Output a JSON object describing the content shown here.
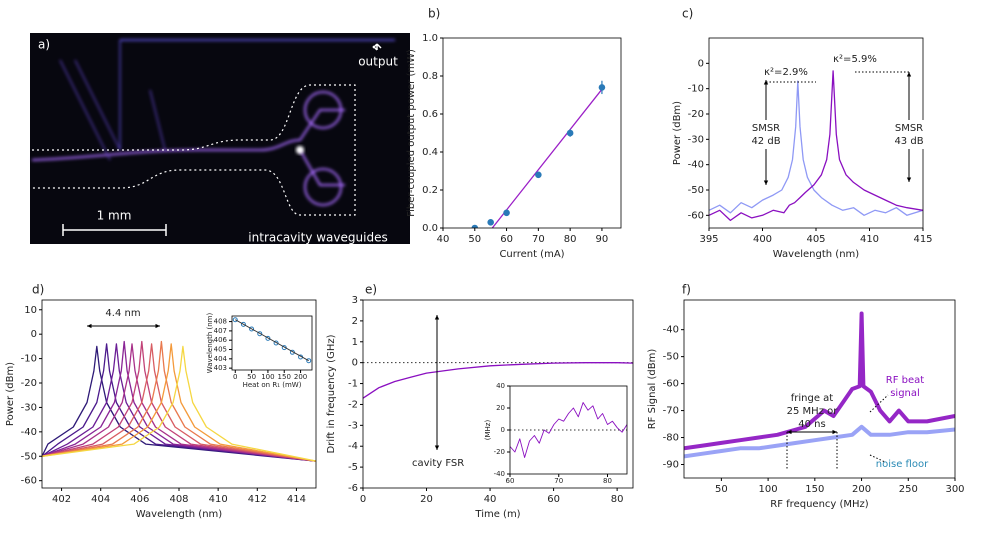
{
  "panel_a": {
    "label": "a)",
    "output": "output",
    "scale": "1 mm",
    "caption": "intracavity waveguides"
  },
  "chart_data": [
    {
      "label": "b)",
      "type": "scatter",
      "xlabel": "Current (mA)",
      "ylabel": "Fiber-coupled output power (mW)",
      "xlim": [
        40,
        96
      ],
      "xticks": [
        40,
        50,
        60,
        70,
        80,
        90
      ],
      "ylim": [
        0,
        1.0
      ],
      "yticks": [
        {
          "value": 0,
          "label": "0.0"
        },
        0.2,
        0.4,
        0.6,
        0.8,
        {
          "value": 1,
          "label": "1.0"
        }
      ],
      "series": [
        {
          "color": "#9b1fc7",
          "style": "line",
          "x": [
            55.5,
            90
          ],
          "values": [
            0,
            0.73
          ]
        },
        {
          "color": "#2a7ab8",
          "style": "points",
          "x": [
            50,
            55,
            60,
            70,
            80,
            90
          ],
          "values": [
            0.0,
            0.03,
            0.08,
            0.28,
            0.5,
            0.74
          ],
          "errors": [
            0.005,
            0.005,
            0.01,
            0.015,
            0.02,
            0.035
          ]
        }
      ]
    },
    {
      "label": "c)",
      "type": "line",
      "xlabel": "Wavelength (nm)",
      "ylabel": "Power (dBm)",
      "xlim": [
        395,
        415
      ],
      "xticks": [
        395,
        400,
        405,
        410,
        415
      ],
      "ylim": [
        -65,
        10
      ],
      "yticks": [
        -60,
        -50,
        -40,
        -30,
        -20,
        -10,
        0
      ],
      "annotations": [
        "κ²=2.9%",
        "κ²=5.9%",
        [
          "SMSR",
          "42 dB"
        ],
        [
          "SMSR",
          "43 dB"
        ]
      ],
      "series": [
        {
          "color": "#8f99f5",
          "style": "line",
          "x": [
            395,
            396,
            397,
            398,
            399,
            400,
            401,
            401.8,
            402.4,
            402.8,
            403.1,
            403.3,
            403.5,
            403.8,
            404.2,
            404.8,
            405.5,
            406.5,
            407.5,
            408.5,
            409.5,
            410.5,
            411.5,
            412.5,
            413.5,
            415
          ],
          "values": [
            -58,
            -56,
            -59,
            -55,
            -57,
            -54,
            -52,
            -50,
            -45,
            -38,
            -25,
            -7,
            -25,
            -38,
            -45,
            -50,
            -53,
            -56,
            -58,
            -57,
            -60,
            -58,
            -59,
            -57,
            -60,
            -58
          ]
        },
        {
          "color": "#8a0fc0",
          "style": "line",
          "x": [
            395,
            396,
            397,
            398,
            399,
            400,
            401,
            402,
            402.5,
            403,
            403.5,
            404,
            404.8,
            405.5,
            406,
            406.3,
            406.6,
            406.9,
            407.2,
            407.8,
            408.5,
            409.5,
            410.5,
            411.5,
            412.5,
            413.5,
            415
          ],
          "values": [
            -60,
            -58,
            -62,
            -59,
            -61,
            -60,
            -58,
            -59,
            -56,
            -55,
            -53,
            -51,
            -48,
            -44,
            -38,
            -28,
            -3,
            -28,
            -38,
            -44,
            -47,
            -50,
            -52,
            -54,
            -56,
            -57,
            -58
          ]
        }
      ]
    },
    {
      "label": "d)",
      "type": "line",
      "xlabel": "Wavelength (nm)",
      "ylabel": "Power (dBm)",
      "xlim": [
        401,
        415
      ],
      "xticks": [
        402,
        404,
        406,
        408,
        410,
        412,
        414
      ],
      "ylim": [
        -63,
        14
      ],
      "yticks": [
        -60,
        -50,
        -40,
        -30,
        -20,
        -10,
        0,
        10
      ],
      "annotations": [
        "4.4 nm"
      ],
      "series": [
        {
          "color": "#2e1a77",
          "style": "line",
          "x": [
            401,
            401.3,
            402.6,
            403.3,
            403.65,
            403.8,
            403.95,
            404.3,
            405,
            406.3,
            415
          ],
          "values": [
            -50,
            -45,
            -38,
            -28,
            -15,
            -5,
            -15,
            -28,
            -38,
            -45,
            -52
          ]
        },
        {
          "color": "#4b1a8c",
          "style": "line",
          "x": [
            401,
            401.8,
            403.1,
            403.8,
            404.15,
            404.3,
            404.45,
            404.8,
            405.5,
            406.8,
            415
          ],
          "values": [
            -50,
            -45,
            -38,
            -28,
            -15,
            -4,
            -15,
            -28,
            -38,
            -45,
            -52
          ]
        },
        {
          "color": "#6b1e96",
          "style": "line",
          "x": [
            401,
            402.3,
            403.6,
            404.3,
            404.65,
            404.8,
            404.95,
            405.3,
            406,
            407.3,
            415
          ],
          "values": [
            -50,
            -45,
            -38,
            -28,
            -15,
            -4,
            -15,
            -28,
            -38,
            -45,
            -52
          ]
        },
        {
          "color": "#8a2596",
          "style": "line",
          "x": [
            401,
            402.7,
            404,
            404.7,
            405.05,
            405.2,
            405.35,
            405.7,
            406.4,
            407.7,
            415
          ],
          "values": [
            -50,
            -45,
            -38,
            -28,
            -15,
            -3,
            -15,
            -28,
            -38,
            -45,
            -52
          ]
        },
        {
          "color": "#a8318a",
          "style": "line",
          "x": [
            401,
            403.1,
            404.4,
            405.1,
            405.45,
            405.6,
            405.75,
            406.1,
            406.8,
            408.1,
            415
          ],
          "values": [
            -50,
            -45,
            -38,
            -28,
            -15,
            -4,
            -15,
            -28,
            -38,
            -45,
            -52
          ]
        },
        {
          "color": "#c24378",
          "style": "line",
          "x": [
            401,
            403.6,
            404.9,
            405.6,
            405.95,
            406.1,
            406.25,
            406.6,
            407.3,
            408.6,
            415
          ],
          "values": [
            -50,
            -45,
            -38,
            -28,
            -15,
            -3,
            -15,
            -28,
            -38,
            -45,
            -52
          ]
        },
        {
          "color": "#d85d63",
          "style": "line",
          "x": [
            401,
            404.1,
            405.4,
            406.1,
            406.45,
            406.6,
            406.75,
            407.1,
            407.8,
            409.1,
            415
          ],
          "values": [
            -50,
            -45,
            -38,
            -28,
            -15,
            -4,
            -15,
            -28,
            -38,
            -45,
            -52
          ]
        },
        {
          "color": "#e9794e",
          "style": "line",
          "x": [
            401,
            404.6,
            405.9,
            406.6,
            406.95,
            407.1,
            407.25,
            407.6,
            408.3,
            409.6,
            415
          ],
          "values": [
            -50,
            -45,
            -38,
            -28,
            -15,
            -3,
            -15,
            -28,
            -38,
            -45,
            -52
          ]
        },
        {
          "color": "#f49a3b",
          "style": "line",
          "x": [
            401,
            405.1,
            406.4,
            407.1,
            407.45,
            407.6,
            407.75,
            408.1,
            408.8,
            410.1,
            415
          ],
          "values": [
            -50,
            -45,
            -38,
            -28,
            -15,
            -4,
            -15,
            -28,
            -38,
            -45,
            -52
          ]
        },
        {
          "color": "#f5d742",
          "style": "line",
          "x": [
            401,
            405.7,
            407,
            407.7,
            408.05,
            408.2,
            408.35,
            408.7,
            409.4,
            410.7,
            415
          ],
          "values": [
            -50,
            -45,
            -38,
            -28,
            -15,
            -5,
            -15,
            -28,
            -38,
            -45,
            -52
          ]
        }
      ],
      "inset": {
        "type": "scatter",
        "xlabel": "Heat on R₁ (mW)",
        "ylabel": "Wavelength (nm)",
        "xlim": [
          -10,
          235
        ],
        "xticks": [
          0,
          50,
          100,
          150,
          200
        ],
        "ylim": [
          402.8,
          408.6
        ],
        "yticks": [
          403,
          404,
          405,
          406,
          407,
          408
        ],
        "series": [
          {
            "color": "#2a7ab8",
            "style": "points",
            "x": [
              0,
              25,
              50,
              75,
              100,
              125,
              150,
              175,
              200,
              225
            ],
            "values": [
              408.2,
              407.7,
              407.2,
              406.7,
              406.2,
              405.7,
              405.2,
              404.7,
              404.2,
              403.8
            ]
          },
          {
            "color": "#333333",
            "style": "line",
            "x": [
              0,
              225
            ],
            "values": [
              408.2,
              403.8
            ]
          }
        ]
      }
    },
    {
      "label": "e)",
      "type": "line",
      "xlabel": "Time (m)",
      "ylabel": "Drift in frequency (GHz)",
      "xlim": [
        0,
        85
      ],
      "xticks": [
        0,
        20,
        40,
        60,
        80
      ],
      "ylim": [
        -6,
        3
      ],
      "yticks": [
        -6,
        -5,
        -4,
        -3,
        -2,
        -1,
        0,
        1,
        2,
        3
      ],
      "hlines": [
        0
      ],
      "annotations": [
        "cavity FSR"
      ],
      "series": [
        {
          "color": "#8a0fc0",
          "style": "line",
          "x": [
            0,
            5,
            10,
            15,
            20,
            25,
            30,
            40,
            50,
            60,
            70,
            80,
            85
          ],
          "values": [
            -1.7,
            -1.2,
            -0.9,
            -0.7,
            -0.5,
            -0.4,
            -0.3,
            -0.15,
            -0.08,
            -0.02,
            0,
            0,
            -0.02
          ]
        }
      ],
      "inset": {
        "type": "line",
        "ylabel": "(MHz)",
        "xlim": [
          60,
          84
        ],
        "xticks": [
          60,
          70,
          80
        ],
        "ylim": [
          -40,
          40
        ],
        "yticks": [
          -40,
          -20,
          0,
          20,
          40
        ],
        "hlines": [
          0
        ],
        "series": [
          {
            "color": "#8a0fc0",
            "style": "line",
            "x": [
              60,
              61,
              62,
              63,
              64,
              65,
              66,
              67,
              68,
              69,
              70,
              71,
              72,
              73,
              74,
              75,
              76,
              77,
              78,
              79,
              80,
              81,
              82,
              83,
              84
            ],
            "values": [
              -15,
              -20,
              -8,
              -25,
              -10,
              -5,
              -12,
              0,
              -3,
              5,
              10,
              8,
              15,
              20,
              12,
              25,
              18,
              22,
              10,
              15,
              5,
              8,
              2,
              -2,
              5
            ]
          }
        ]
      }
    },
    {
      "label": "f)",
      "type": "line",
      "xlabel": "RF frequency (MHz)",
      "ylabel": "RF Signal (dBm)",
      "xlim": [
        10,
        300
      ],
      "xticks": [
        50,
        100,
        150,
        200,
        250,
        300
      ],
      "ylim": [
        -95,
        -29
      ],
      "yticks": [
        -90,
        -80,
        -70,
        -60,
        -50,
        -40
      ],
      "annotations": [
        [
          "fringe at",
          "25 MHz or",
          "40 ns"
        ],
        [
          "RF beat",
          "signal"
        ],
        "noise floor"
      ],
      "series": [
        {
          "color": "#8f99f5",
          "style": "thick",
          "x": [
            10,
            30,
            50,
            70,
            90,
            110,
            130,
            150,
            170,
            190,
            200,
            210,
            230,
            250,
            270,
            300
          ],
          "values": [
            -87,
            -86,
            -85,
            -84,
            -84,
            -83,
            -82,
            -81,
            -80,
            -79,
            -76,
            -79,
            -79,
            -78,
            -78,
            -77
          ]
        },
        {
          "color": "#8a0fc0",
          "style": "thick",
          "x": [
            10,
            30,
            50,
            70,
            90,
            110,
            130,
            140,
            150,
            160,
            170,
            180,
            190,
            198,
            200,
            202,
            210,
            220,
            230,
            240,
            250,
            270,
            300
          ],
          "values": [
            -84,
            -83,
            -82,
            -81,
            -80,
            -79,
            -77,
            -76,
            -73,
            -70,
            -72,
            -67,
            -62,
            -61,
            -34,
            -61,
            -63,
            -70,
            -74,
            -70,
            -74,
            -74,
            -72
          ]
        }
      ]
    }
  ]
}
